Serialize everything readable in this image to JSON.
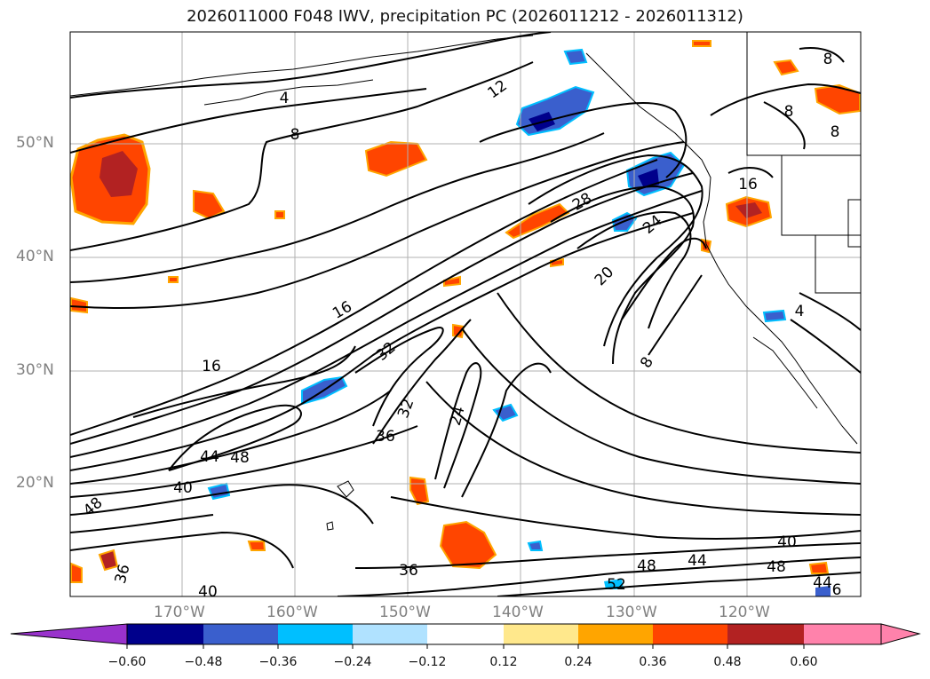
{
  "title": "2026011000 F048 IWV, precipitation PC (2026011212 - 2026011312)",
  "lat_labels": [
    "50°N",
    "40°N",
    "30°N",
    "20°N"
  ],
  "lon_labels": [
    "170°W",
    "160°W",
    "150°W",
    "140°W",
    "130°W",
    "120°W"
  ],
  "contour_labels": [
    "4",
    "8",
    "8",
    "12",
    "16",
    "16",
    "16",
    "20",
    "24",
    "24",
    "28",
    "32",
    "32",
    "36",
    "36",
    "36",
    "40",
    "40",
    "40",
    "44",
    "44",
    "44",
    "48",
    "48",
    "48",
    "48",
    "52",
    "8",
    "8",
    "8",
    "4",
    "6"
  ],
  "colorbar": {
    "ticks": [
      "−0.60",
      "−0.48",
      "−0.36",
      "−0.24",
      "−0.12",
      "0.12",
      "0.24",
      "0.36",
      "0.48",
      "0.60"
    ],
    "colors": [
      "#9932cc",
      "#00008b",
      "#3a5fcd",
      "#00bfff",
      "#b0e2ff",
      "#ffffff",
      "#ffe88c",
      "#ffa500",
      "#ff4500",
      "#b22222",
      "#ff82ab",
      "#ff82ab"
    ]
  }
}
